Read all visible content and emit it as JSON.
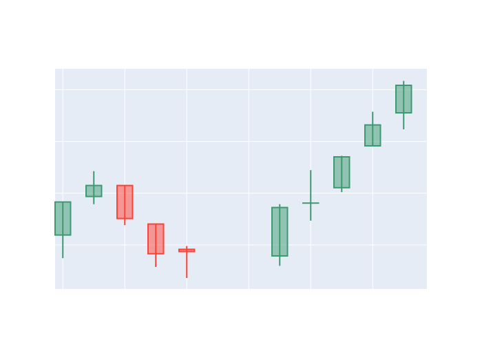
{
  "chart_data": {
    "type": "candlestick",
    "title": "",
    "xlabel": "",
    "ylabel": "",
    "grid": true,
    "legend": "none",
    "x_tick_labels": [],
    "y_tick_labels": [],
    "ylim": [
      0,
      100
    ],
    "xlim": [
      -0.25,
      11.75
    ],
    "categories": [
      0,
      1,
      2,
      3,
      4,
      5,
      6,
      7,
      8,
      9,
      10,
      11
    ],
    "candles": [
      {
        "x": 0,
        "open": 24.5,
        "high": 39.5,
        "low": 14.0,
        "close": 39.5
      },
      {
        "x": 1,
        "open": 42.0,
        "high": 53.5,
        "low": 38.5,
        "close": 47.0
      },
      {
        "x": 2,
        "open": 47.0,
        "high": 47.0,
        "low": 29.0,
        "close": 32.0
      },
      {
        "x": 3,
        "open": 29.5,
        "high": 29.5,
        "low": 10.0,
        "close": 16.0
      },
      {
        "x": 4,
        "open": 18.0,
        "high": 19.5,
        "low": 5.0,
        "close": 17.0
      },
      {
        "x": 7,
        "open": 15.0,
        "high": 38.5,
        "low": 10.5,
        "close": 37.0
      },
      {
        "x": 8,
        "open": 39.0,
        "high": 54.0,
        "low": 31.0,
        "close": 39.0
      },
      {
        "x": 9,
        "open": 46.0,
        "high": 60.5,
        "low": 44.0,
        "close": 60.0
      },
      {
        "x": 10,
        "open": 65.0,
        "high": 80.5,
        "low": 65.0,
        "close": 74.5
      },
      {
        "x": 11,
        "open": 80.0,
        "high": 94.5,
        "low": 72.5,
        "close": 92.5
      }
    ],
    "y_gridlines": [
      20,
      43.5,
      67,
      90.5
    ],
    "x_gridlines": [
      0,
      2,
      4,
      6,
      8,
      10
    ],
    "colors": {
      "increasing": "#3d9970",
      "decreasing": "#ff4136",
      "plot_background": "#e5ecf6",
      "paper_background": "#ffffff",
      "gridline": "#ffffff"
    }
  }
}
